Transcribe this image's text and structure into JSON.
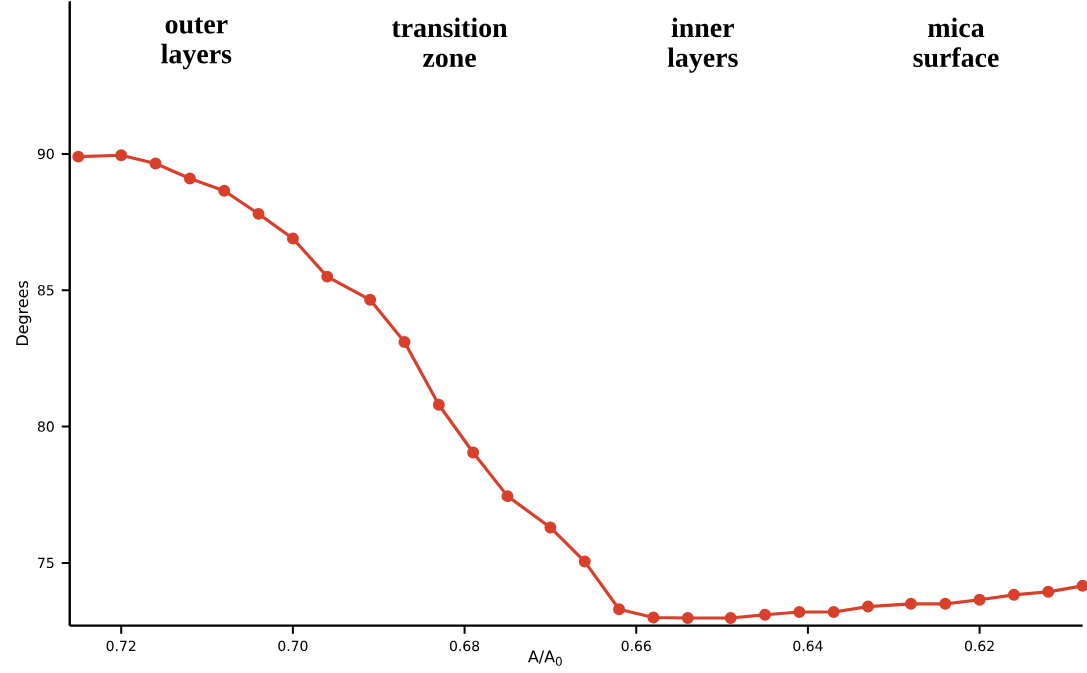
{
  "chart_data": {
    "type": "line",
    "xlabel": "A/A$_{0}$",
    "ylabel": "Degrees",
    "annotations": [
      "outer layers",
      "transition zone",
      "inner layers",
      "mica surface"
    ],
    "x": [
      0.725,
      0.72,
      0.716,
      0.712,
      0.708,
      0.704,
      0.7,
      0.696,
      0.691,
      0.687,
      0.683,
      0.679,
      0.675,
      0.67,
      0.666,
      0.662,
      0.658,
      0.654,
      0.649,
      0.645,
      0.641,
      0.637,
      0.633,
      0.628,
      0.624,
      0.62,
      0.616,
      0.612,
      0.608
    ],
    "series": [
      {
        "color": "#d8402c",
        "values": [
          89.9,
          89.95,
          89.65,
          89.1,
          88.65,
          87.8,
          86.9,
          85.5,
          84.65,
          83.1,
          80.8,
          79.05,
          77.45,
          76.3,
          75.05,
          73.3,
          73.0,
          72.98,
          72.98,
          73.1,
          73.2,
          73.2,
          73.4,
          73.5,
          73.5,
          73.65,
          73.83,
          73.94,
          74.16
        ]
      }
    ],
    "xlim": [
      0.726,
      0.608
    ],
    "ylim": [
      72.7,
      95.6
    ],
    "xticks": [
      0.72,
      {
        "value": 0.7,
        "label": "0.70"
      },
      0.68,
      0.66,
      0.64,
      0.62
    ],
    "yticks": [
      75,
      80,
      85,
      90
    ],
    "marker": "circle",
    "line_style": "solid",
    "grid": false
  }
}
